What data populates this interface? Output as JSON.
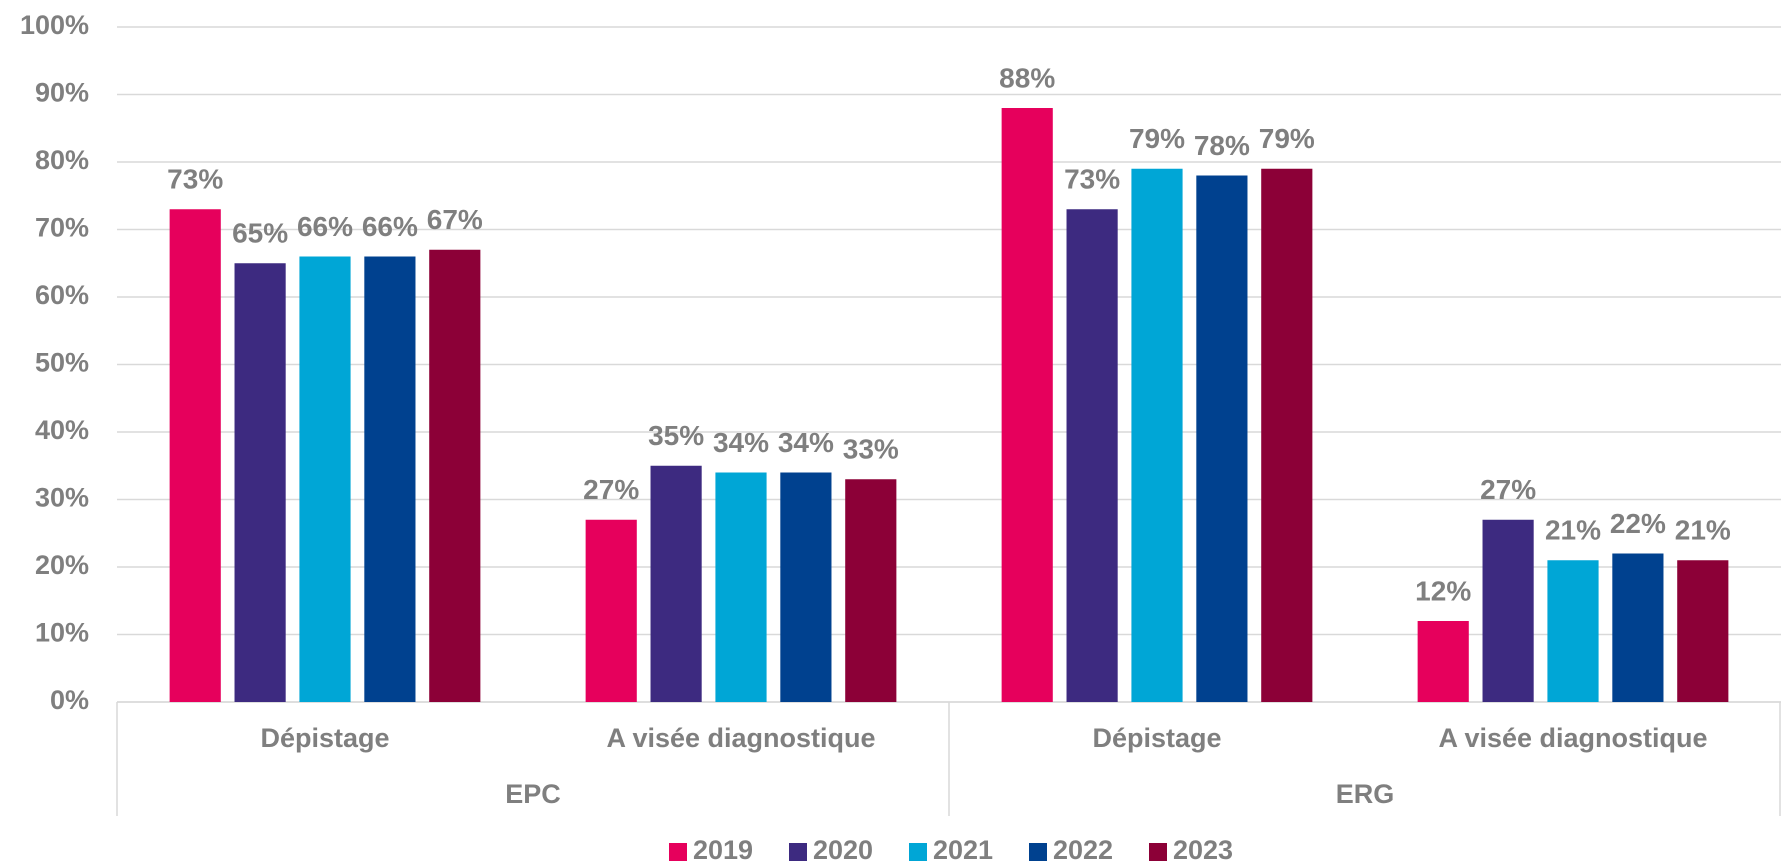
{
  "chart_data": {
    "type": "bar",
    "categories": [
      "Dépistage",
      "A visée diagnostique",
      "Dépistage",
      "A visée diagnostique"
    ],
    "category_groups": [
      "EPC",
      "ERG"
    ],
    "series": [
      {
        "name": "2019",
        "color": "#e6005c",
        "values": [
          73,
          27,
          88,
          12
        ],
        "value_labels": [
          "73%",
          "27%",
          "88%",
          "12%"
        ]
      },
      {
        "name": "2020",
        "color": "#3d2a80",
        "values": [
          65,
          35,
          73,
          27
        ],
        "value_labels": [
          "65%",
          "35%",
          "73%",
          "27%"
        ]
      },
      {
        "name": "2021",
        "color": "#00a6d6",
        "values": [
          66,
          34,
          79,
          21
        ],
        "value_labels": [
          "66%",
          "34%",
          "79%",
          "21%"
        ]
      },
      {
        "name": "2022",
        "color": "#00418f",
        "values": [
          66,
          34,
          78,
          22
        ],
        "value_labels": [
          "66%",
          "34%",
          "78%",
          "22%"
        ]
      },
      {
        "name": "2023",
        "color": "#8c0037",
        "values": [
          67,
          33,
          79,
          21
        ],
        "value_labels": [
          "67%",
          "33%",
          "79%",
          "21%"
        ]
      }
    ],
    "ylim": [
      0,
      100
    ],
    "yticks": [
      {
        "value": 0,
        "label": "0%"
      },
      {
        "value": 10,
        "label": "10%"
      },
      {
        "value": 20,
        "label": "20%"
      },
      {
        "value": 30,
        "label": "30%"
      },
      {
        "value": 40,
        "label": "40%"
      },
      {
        "value": 50,
        "label": "50%"
      },
      {
        "value": 60,
        "label": "60%"
      },
      {
        "value": 70,
        "label": "70%"
      },
      {
        "value": 80,
        "label": "80%"
      },
      {
        "value": 90,
        "label": "90%"
      },
      {
        "value": 100,
        "label": "100%"
      }
    ],
    "grid": true,
    "legend": "bottom"
  }
}
